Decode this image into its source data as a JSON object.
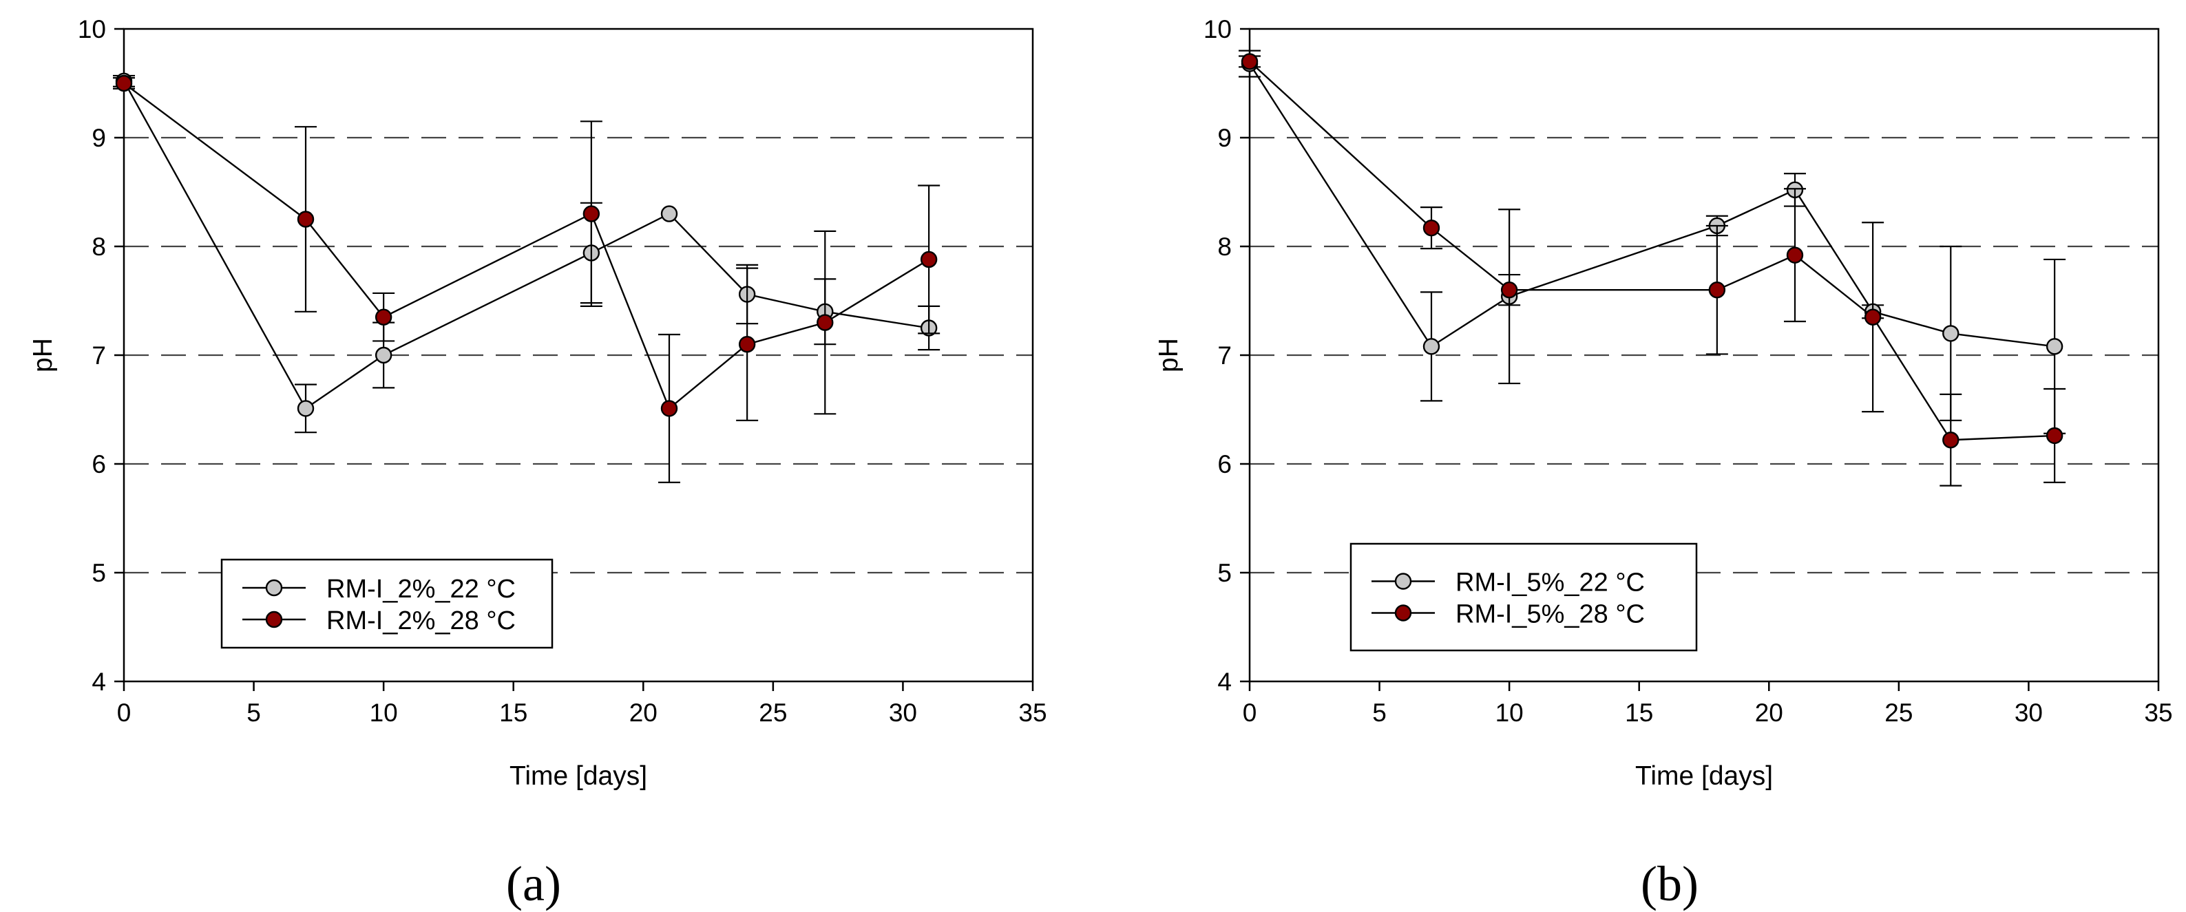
{
  "figure": {
    "panel_labels": [
      "(a)",
      "(b)"
    ]
  },
  "chart_data": [
    {
      "type": "line",
      "panel": "(a)",
      "title": "",
      "xlabel": "Time [days]",
      "ylabel": "pH",
      "xlim": [
        0,
        35
      ],
      "ylim": [
        4,
        10
      ],
      "xticks": [
        0,
        5,
        10,
        15,
        20,
        25,
        30,
        35
      ],
      "yticks": [
        4,
        5,
        6,
        7,
        8,
        9,
        10
      ],
      "grid": "dashed horizontal",
      "legend_position": "lower-left",
      "series": [
        {
          "name": "RM-I_2%_22 °C",
          "color": "#c8c8c8",
          "x": [
            0,
            7,
            10,
            18,
            21,
            24,
            27,
            31
          ],
          "y": [
            9.52,
            6.51,
            7.0,
            7.94,
            8.3,
            7.56,
            7.4,
            7.25
          ],
          "err": [
            0.05,
            0.22,
            0.3,
            0.46,
            0.0,
            0.27,
            0.3,
            0.2
          ]
        },
        {
          "name": "RM-I_2%_28 °C",
          "color": "#8b0000",
          "x": [
            0,
            7,
            10,
            18,
            21,
            24,
            27,
            31
          ],
          "y": [
            9.5,
            8.25,
            7.35,
            8.3,
            6.51,
            7.1,
            7.3,
            7.88
          ],
          "err": [
            0.05,
            0.85,
            0.22,
            0.85,
            0.68,
            0.7,
            0.84,
            0.68
          ]
        }
      ]
    },
    {
      "type": "line",
      "panel": "(b)",
      "title": "",
      "xlabel": "Time [days]",
      "ylabel": "pH",
      "xlim": [
        0,
        35
      ],
      "ylim": [
        4,
        10
      ],
      "xticks": [
        0,
        5,
        10,
        15,
        20,
        25,
        30,
        35
      ],
      "yticks": [
        4,
        5,
        6,
        7,
        8,
        9,
        10
      ],
      "grid": "dashed horizontal",
      "legend_position": "lower-left",
      "series": [
        {
          "name": "RM-I_5%_22 °C",
          "color": "#c8c8c8",
          "x": [
            0,
            7,
            10,
            18,
            21,
            24,
            27,
            31
          ],
          "y": [
            9.68,
            7.08,
            7.54,
            8.19,
            8.52,
            7.4,
            7.2,
            7.08
          ],
          "err": [
            0.12,
            0.5,
            0.8,
            0.09,
            0.15,
            0.06,
            0.8,
            0.8
          ]
        },
        {
          "name": "RM-I_5%_28 °C",
          "color": "#8b0000",
          "x": [
            0,
            7,
            10,
            18,
            21,
            24,
            27,
            31
          ],
          "y": [
            9.7,
            8.17,
            7.6,
            7.6,
            7.92,
            7.35,
            6.22,
            6.26
          ],
          "err": [
            0.05,
            0.19,
            0.14,
            0.59,
            0.61,
            0.87,
            0.42,
            0.43
          ]
        }
      ]
    }
  ]
}
